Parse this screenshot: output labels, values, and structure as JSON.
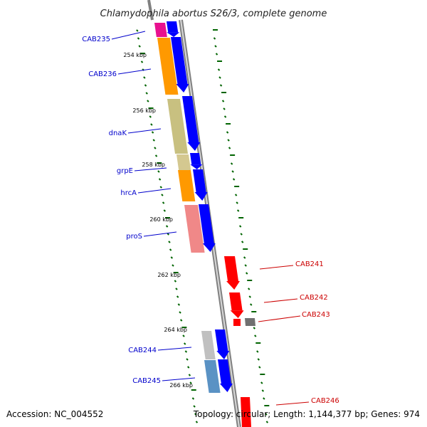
{
  "title": "Chlamydophila abortus S26/3, complete genome",
  "accession": "Accession: NC_004552",
  "topology": "Topology: circular; Length: 1,144,377 bp; Genes: 974",
  "colors": {
    "backbone": "#808080",
    "forward_gene": "#0000ff",
    "reverse_gene": "#ff0000",
    "tick": "#006400",
    "left_label": "#0000cc",
    "right_label": "#cc0000",
    "magenta_feature": "#e8118f",
    "orange_feature": "#ff9900",
    "khaki_feature": "#c8c080",
    "tan_feature": "#d4c890",
    "salmon_feature": "#f08888",
    "gray_feature": "#c0c0c0",
    "steel_feature": "#5a92c4",
    "dark_gray_feature": "#707070"
  },
  "scale_labels": [
    "254 kbp",
    "256 kbp",
    "258 kbp",
    "260 kbp",
    "262 kbp",
    "264 kbp",
    "266 kbp"
  ],
  "left_genes": [
    "CAB235",
    "CAB236",
    "dnaK",
    "grpE",
    "hrcA",
    "proS",
    "CAB244",
    "CAB245"
  ],
  "right_genes": [
    "CAB241",
    "CAB242",
    "CAB243",
    "CAB246"
  ]
}
